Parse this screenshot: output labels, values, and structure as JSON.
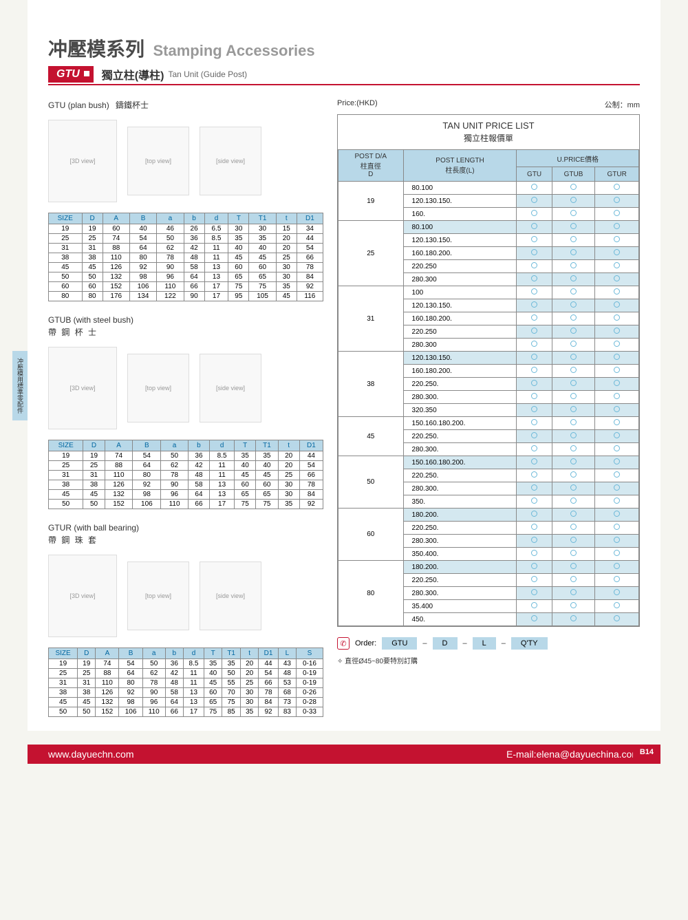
{
  "header": {
    "title_cn": "冲壓模系列",
    "title_en": "Stamping Accessories",
    "badge": "GTU",
    "sub_cn": "獨立柱(導柱)",
    "sub_en": "Tan Unit (Guide Post)"
  },
  "side_tab": "冲壓模用標準零配件",
  "sections": {
    "gtu": {
      "label_en": "GTU (plan bush)",
      "label_cn": "鑄鐵杯士"
    },
    "gtub": {
      "label_en": "GTUB (with steel bush)",
      "label_cn": "帶 鋼 杯 士"
    },
    "gtur": {
      "label_en": "GTUR (with ball bearing)",
      "label_cn": "帶 鋼 珠 套"
    }
  },
  "table1": {
    "cols": [
      "SIZE",
      "D",
      "A",
      "B",
      "a",
      "b",
      "d",
      "T",
      "T1",
      "t",
      "D1"
    ],
    "rows": [
      [
        "19",
        "19",
        "60",
        "40",
        "46",
        "26",
        "6.5",
        "30",
        "30",
        "15",
        "34"
      ],
      [
        "25",
        "25",
        "74",
        "54",
        "50",
        "36",
        "8.5",
        "35",
        "35",
        "20",
        "44"
      ],
      [
        "31",
        "31",
        "88",
        "64",
        "62",
        "42",
        "11",
        "40",
        "40",
        "20",
        "54"
      ],
      [
        "38",
        "38",
        "110",
        "80",
        "78",
        "48",
        "11",
        "45",
        "45",
        "25",
        "66"
      ],
      [
        "45",
        "45",
        "126",
        "92",
        "90",
        "58",
        "13",
        "60",
        "60",
        "30",
        "78"
      ],
      [
        "50",
        "50",
        "132",
        "98",
        "96",
        "64",
        "13",
        "65",
        "65",
        "30",
        "84"
      ],
      [
        "60",
        "60",
        "152",
        "106",
        "110",
        "66",
        "17",
        "75",
        "75",
        "35",
        "92"
      ],
      [
        "80",
        "80",
        "176",
        "134",
        "122",
        "90",
        "17",
        "95",
        "105",
        "45",
        "116"
      ]
    ]
  },
  "table2": {
    "cols": [
      "SIZE",
      "D",
      "A",
      "B",
      "a",
      "b",
      "d",
      "T",
      "T1",
      "t",
      "D1"
    ],
    "rows": [
      [
        "19",
        "19",
        "74",
        "54",
        "50",
        "36",
        "8.5",
        "35",
        "35",
        "20",
        "44"
      ],
      [
        "25",
        "25",
        "88",
        "64",
        "62",
        "42",
        "11",
        "40",
        "40",
        "20",
        "54"
      ],
      [
        "31",
        "31",
        "110",
        "80",
        "78",
        "48",
        "11",
        "45",
        "45",
        "25",
        "66"
      ],
      [
        "38",
        "38",
        "126",
        "92",
        "90",
        "58",
        "13",
        "60",
        "60",
        "30",
        "78"
      ],
      [
        "45",
        "45",
        "132",
        "98",
        "96",
        "64",
        "13",
        "65",
        "65",
        "30",
        "84"
      ],
      [
        "50",
        "50",
        "152",
        "106",
        "110",
        "66",
        "17",
        "75",
        "75",
        "35",
        "92"
      ]
    ]
  },
  "table3": {
    "cols": [
      "SIZE",
      "D",
      "A",
      "B",
      "a",
      "b",
      "d",
      "T",
      "T1",
      "t",
      "D1",
      "L",
      "S"
    ],
    "rows": [
      [
        "19",
        "19",
        "74",
        "54",
        "50",
        "36",
        "8.5",
        "35",
        "35",
        "20",
        "44",
        "43",
        "0-16"
      ],
      [
        "25",
        "25",
        "88",
        "64",
        "62",
        "42",
        "11",
        "40",
        "50",
        "20",
        "54",
        "48",
        "0-19"
      ],
      [
        "31",
        "31",
        "110",
        "80",
        "78",
        "48",
        "11",
        "45",
        "55",
        "25",
        "66",
        "53",
        "0-19"
      ],
      [
        "38",
        "38",
        "126",
        "92",
        "90",
        "58",
        "13",
        "60",
        "70",
        "30",
        "78",
        "68",
        "0-26"
      ],
      [
        "45",
        "45",
        "132",
        "98",
        "96",
        "64",
        "13",
        "65",
        "75",
        "30",
        "84",
        "73",
        "0-28"
      ],
      [
        "50",
        "50",
        "152",
        "106",
        "110",
        "66",
        "17",
        "75",
        "85",
        "35",
        "92",
        "83",
        "0-33"
      ]
    ]
  },
  "price": {
    "currency": "Price:(HKD)",
    "unit": "公制：mm",
    "title_en": "TAN UNIT PRICE LIST",
    "title_cn": "獨立柱報價單",
    "h_post": "POST D/A\n柱直徑\nD",
    "h_len": "POST LENGTH\n柱長度(L)",
    "h_uprice": "U.PRICE價格",
    "h_gtu": "GTU",
    "h_gtub": "GTUB",
    "h_gtur": "GTUR",
    "groups": [
      {
        "id": "19",
        "rows": [
          {
            "l": "80.100",
            "s": 0
          },
          {
            "l": "120.130.150.",
            "s": 1
          },
          {
            "l": "160.",
            "s": 0
          }
        ]
      },
      {
        "id": "25",
        "rows": [
          {
            "l": "80.100",
            "s": 1
          },
          {
            "l": "120.130.150.",
            "s": 0
          },
          {
            "l": "160.180.200.",
            "s": 1
          },
          {
            "l": "220.250",
            "s": 0
          },
          {
            "l": "280.300",
            "s": 1
          }
        ]
      },
      {
        "id": "31",
        "rows": [
          {
            "l": "100",
            "s": 0
          },
          {
            "l": "120.130.150.",
            "s": 1
          },
          {
            "l": "160.180.200.",
            "s": 0
          },
          {
            "l": "220.250",
            "s": 1
          },
          {
            "l": "280.300",
            "s": 0
          }
        ]
      },
      {
        "id": "38",
        "rows": [
          {
            "l": "120.130.150.",
            "s": 1
          },
          {
            "l": "160.180.200.",
            "s": 0
          },
          {
            "l": "220.250.",
            "s": 1
          },
          {
            "l": "280.300.",
            "s": 0
          },
          {
            "l": "320.350",
            "s": 1
          }
        ]
      },
      {
        "id": "45",
        "rows": [
          {
            "l": "150.160.180.200.",
            "s": 0
          },
          {
            "l": "220.250.",
            "s": 1
          },
          {
            "l": "280.300.",
            "s": 0
          }
        ]
      },
      {
        "id": "50",
        "rows": [
          {
            "l": "150.160.180.200.",
            "s": 1
          },
          {
            "l": "220.250.",
            "s": 0
          },
          {
            "l": "280.300.",
            "s": 1
          },
          {
            "l": "350.",
            "s": 0
          }
        ]
      },
      {
        "id": "60",
        "rows": [
          {
            "l": "180.200.",
            "s": 1
          },
          {
            "l": "220.250.",
            "s": 0
          },
          {
            "l": "280.300.",
            "s": 1
          },
          {
            "l": "350.400.",
            "s": 0
          }
        ]
      },
      {
        "id": "80",
        "rows": [
          {
            "l": "180.200.",
            "s": 1
          },
          {
            "l": "220.250.",
            "s": 0
          },
          {
            "l": "280.300.",
            "s": 1
          },
          {
            "l": "35.400",
            "s": 0
          },
          {
            "l": "450.",
            "s": 1
          }
        ]
      }
    ]
  },
  "order": {
    "label": "Order:",
    "parts": [
      "GTU",
      "D",
      "L",
      "Q'TY"
    ],
    "note": "✧ 直徑Ø45~80要特別訂購"
  },
  "footer": {
    "url": "www.dayuechn.com",
    "email": "E-mail:elena@dayuechina.com",
    "page": "B14"
  },
  "colors": {
    "brand": "#c41230",
    "table_header": "#b8d8e8",
    "shade": "#d4e8f0"
  }
}
